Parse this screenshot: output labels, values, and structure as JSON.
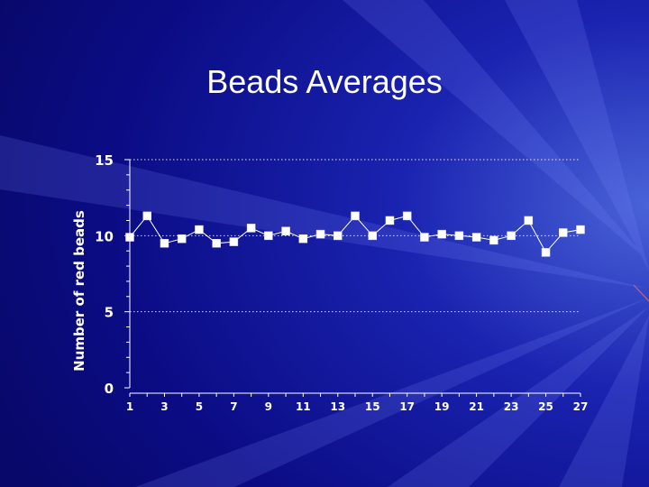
{
  "slide": {
    "title": "Beads Averages"
  },
  "chart_data": {
    "type": "line",
    "title": "Beads Averages",
    "xlabel": "",
    "ylabel": "Number of red beads",
    "x": [
      1,
      2,
      3,
      4,
      5,
      6,
      7,
      8,
      9,
      10,
      11,
      12,
      13,
      14,
      15,
      16,
      17,
      18,
      19,
      20,
      21,
      22,
      23,
      24,
      25,
      26,
      27
    ],
    "y": [
      9.9,
      11.3,
      9.5,
      9.8,
      10.4,
      9.5,
      9.6,
      10.5,
      10.0,
      10.3,
      9.8,
      10.1,
      10.0,
      11.3,
      10.0,
      11.0,
      11.3,
      9.9,
      10.1,
      10.0,
      9.9,
      9.7,
      10.0,
      11.0,
      8.9,
      10.2,
      10.4
    ],
    "xticks": [
      1,
      3,
      5,
      7,
      9,
      11,
      13,
      15,
      17,
      19,
      21,
      23,
      25,
      27
    ],
    "yticks": [
      0,
      5,
      10,
      15
    ],
    "xlim": [
      1,
      27
    ],
    "ylim": [
      0,
      15
    ],
    "gridlines_y": [
      5,
      10,
      15
    ],
    "colors": {
      "line": "#ffffff",
      "marker": "#ffffff",
      "grid": "#ffffff",
      "text": "#ffffff",
      "background": "#0a0a7a"
    }
  }
}
